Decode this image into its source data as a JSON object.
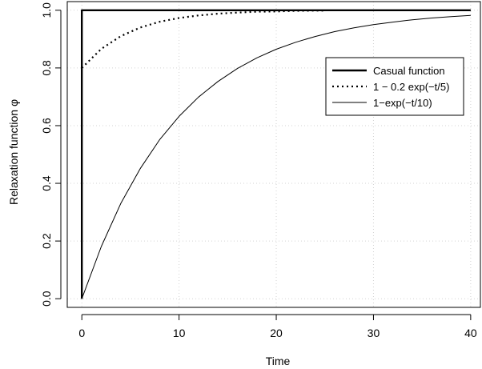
{
  "chart_data": {
    "type": "line",
    "xlabel": "Time",
    "ylabel": "Relaxation function φ",
    "xlim": [
      -1.5,
      41
    ],
    "ylim": [
      -0.03,
      1.03
    ],
    "xticks": [
      0,
      10,
      20,
      30,
      40
    ],
    "xtick_labels": [
      "0",
      "10",
      "20",
      "30",
      "40"
    ],
    "yticks": [
      0.0,
      0.2,
      0.4,
      0.6,
      0.8,
      1.0
    ],
    "ytick_labels": [
      "0.0",
      "0.2",
      "0.4",
      "0.6",
      "0.8",
      "1.0"
    ],
    "grid": true,
    "legend_position": "top-right",
    "series": [
      {
        "name": "Casual function",
        "style": "thick-solid",
        "x": [
          0,
          0,
          40
        ],
        "y": [
          0,
          1,
          1
        ]
      },
      {
        "name": "1 − 0.2 exp(−t/5)",
        "style": "dotted",
        "x": [
          0,
          2,
          4,
          6,
          8,
          10,
          12,
          14,
          16,
          18,
          20,
          22,
          25
        ],
        "y": [
          0.8,
          0.866,
          0.91,
          0.94,
          0.96,
          0.973,
          0.982,
          0.988,
          0.992,
          0.995,
          0.996,
          0.998,
          0.999
        ]
      },
      {
        "name": "1−exp(−t/10)",
        "style": "thin-solid",
        "x": [
          0,
          2,
          4,
          6,
          8,
          10,
          12,
          14,
          16,
          18,
          20,
          22,
          24,
          26,
          28,
          30,
          32,
          34,
          36,
          38,
          40
        ],
        "y": [
          0.0,
          0.181,
          0.33,
          0.451,
          0.551,
          0.632,
          0.699,
          0.753,
          0.798,
          0.835,
          0.865,
          0.889,
          0.909,
          0.926,
          0.939,
          0.95,
          0.959,
          0.967,
          0.973,
          0.978,
          0.982
        ]
      }
    ]
  }
}
